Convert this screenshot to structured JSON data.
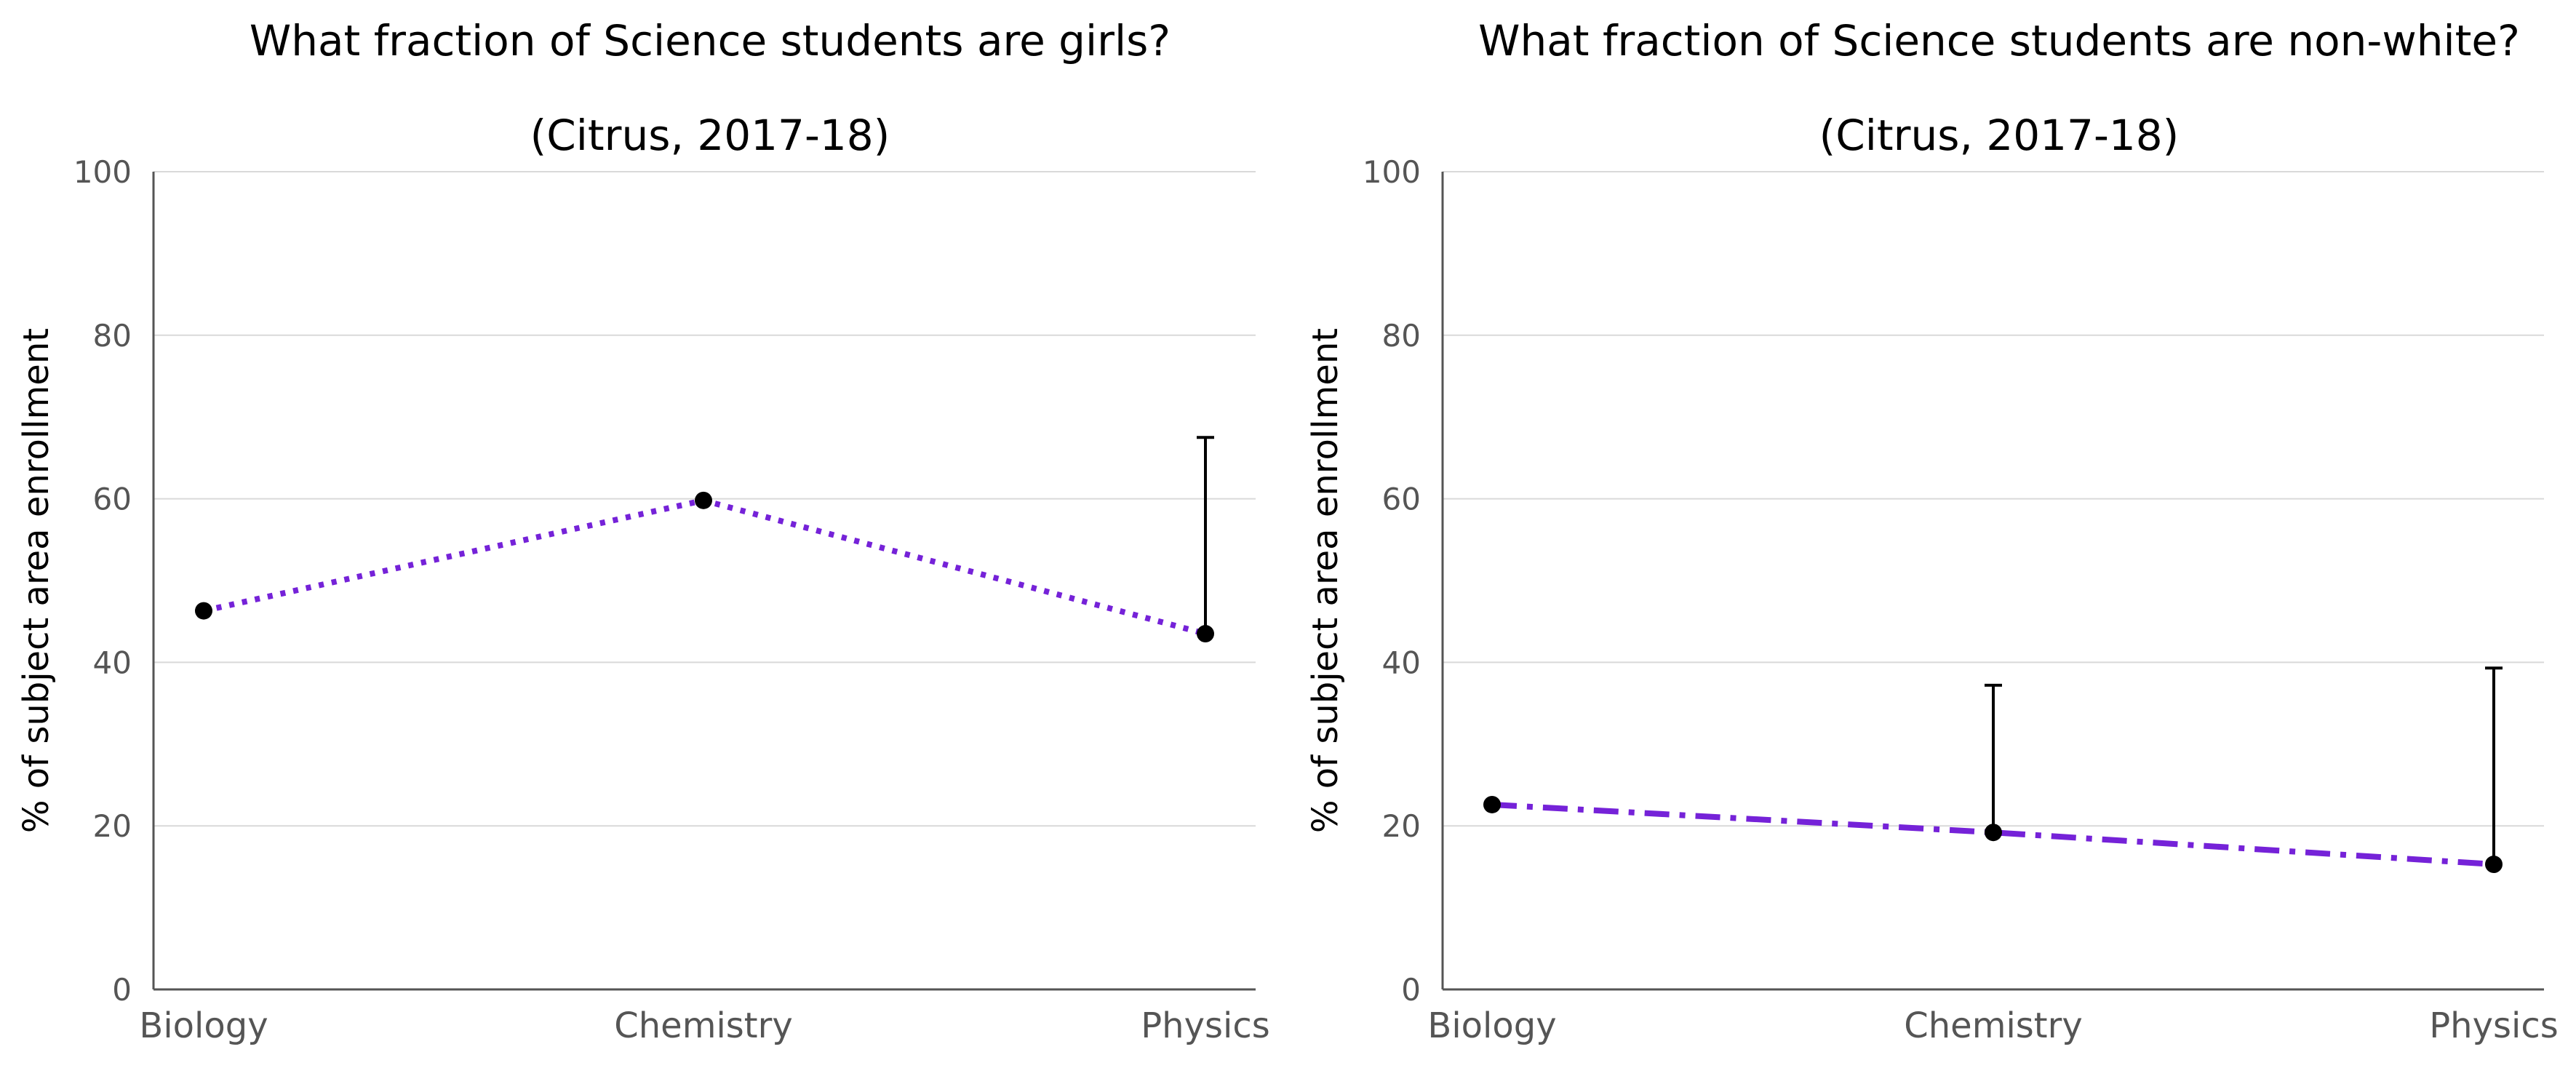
{
  "chart_data": [
    {
      "type": "line",
      "title": "What fraction of Science students are girls?",
      "subtitle": "(Citrus, 2017-18)",
      "ylabel": "% of subject area enrollment",
      "xlabel": "",
      "ylim": [
        0,
        100
      ],
      "yticks": [
        0,
        20,
        40,
        60,
        80,
        100
      ],
      "categories": [
        "Biology",
        "Chemistry",
        "Physics"
      ],
      "grid": true,
      "line_style": "dotted",
      "series": [
        {
          "values": [
            46.3,
            59.8,
            43.5
          ],
          "error_upper": [
            null,
            null,
            67.5
          ]
        }
      ]
    },
    {
      "type": "line",
      "title": "What fraction of Science students are non-white?",
      "subtitle": "(Citrus, 2017-18)",
      "ylabel": "% of subject area enrollment",
      "xlabel": "",
      "ylim": [
        0,
        100
      ],
      "yticks": [
        0,
        20,
        40,
        60,
        80,
        100
      ],
      "categories": [
        "Biology",
        "Chemistry",
        "Physics"
      ],
      "grid": true,
      "line_style": "dash-dot",
      "series": [
        {
          "values": [
            22.6,
            19.2,
            15.3
          ],
          "error_upper": [
            null,
            37.2,
            39.3
          ]
        }
      ]
    }
  ],
  "colors": {
    "line": "#7522d8",
    "marker": "#000000",
    "grid": "#d9d9d9",
    "axis": "#555555"
  }
}
